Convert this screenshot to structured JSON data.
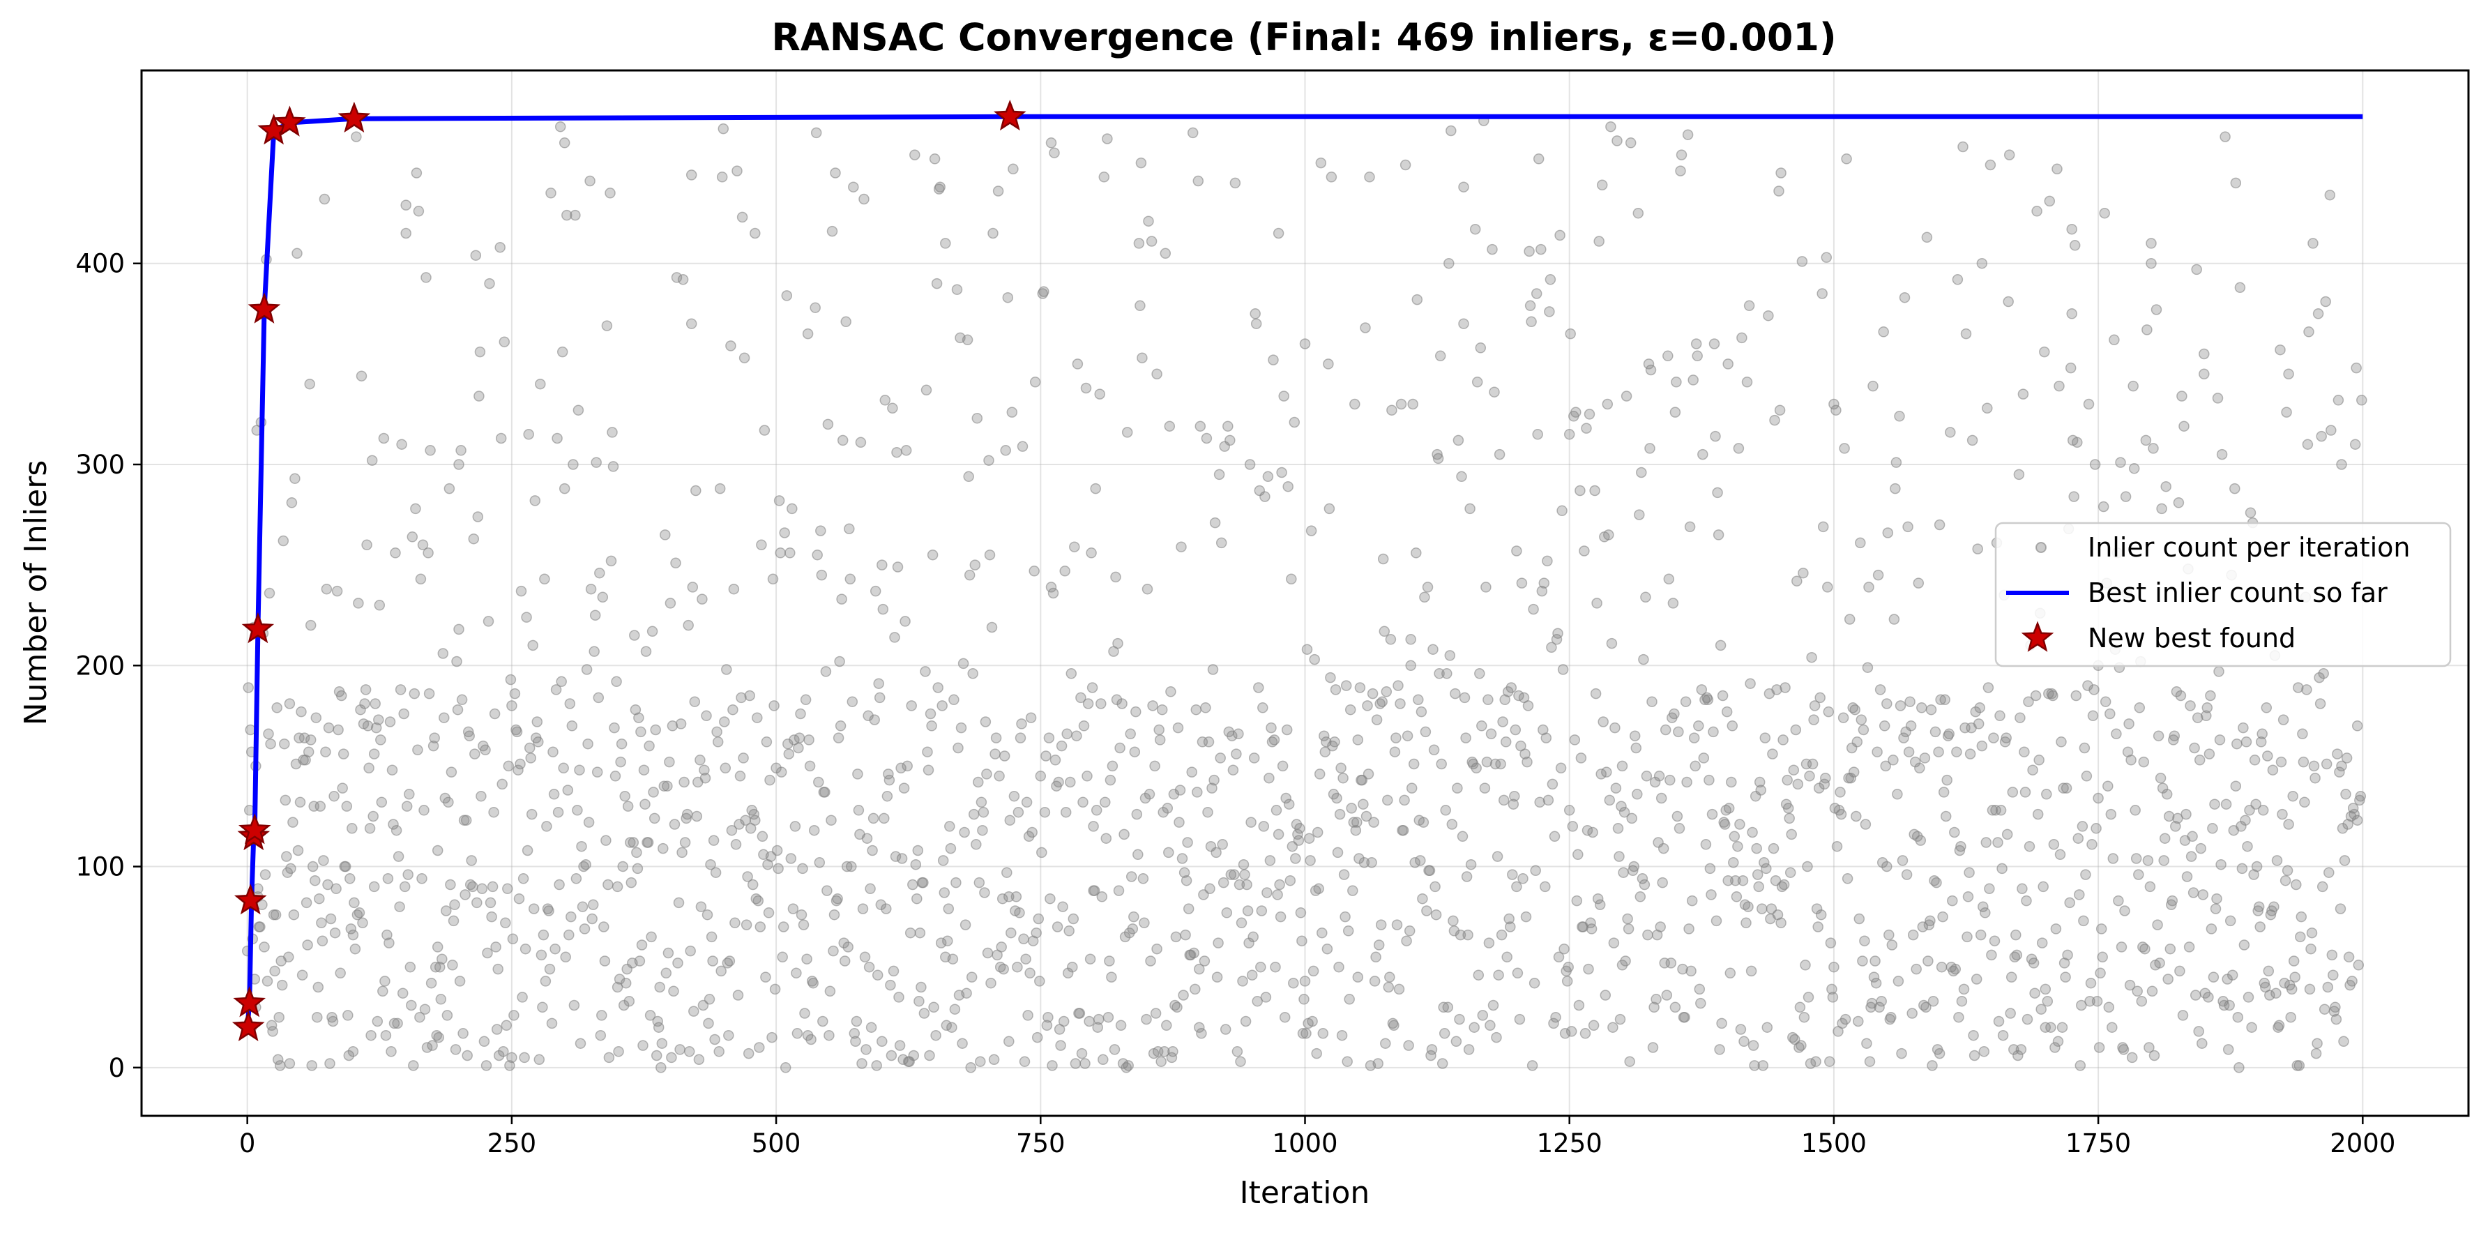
{
  "chart_data": {
    "type": "scatter",
    "title": "RANSAC Convergence (Final: 469 inliers, ε=0.001)",
    "xlabel": "Iteration",
    "ylabel": "Number of Inliers",
    "xlim": [
      -100,
      2100
    ],
    "ylim": [
      -24,
      496
    ],
    "xticks": [
      0,
      250,
      500,
      750,
      1000,
      1250,
      1500,
      1750,
      2000
    ],
    "yticks": [
      0,
      100,
      200,
      300,
      400
    ],
    "grid": true,
    "legend_position": "center-right",
    "series": [
      {
        "name": "Inlier count per iteration",
        "kind": "scatter",
        "color": "#808080",
        "x_range": [
          0,
          2000
        ],
        "y_range": [
          0,
          472
        ],
        "sample_points": [
          [
            4,
            20
          ],
          [
            8,
            30
          ],
          [
            10,
            85
          ],
          [
            40,
            2
          ],
          [
            60,
            220
          ],
          [
            100,
            8
          ],
          [
            120,
            90
          ],
          [
            150,
            415
          ],
          [
            180,
            60
          ],
          [
            200,
            300
          ],
          [
            250,
            180
          ],
          [
            300,
            460
          ],
          [
            350,
            40
          ],
          [
            420,
            370
          ],
          [
            480,
            415
          ],
          [
            530,
            365
          ],
          [
            600,
            250
          ],
          [
            660,
            410
          ],
          [
            720,
            85
          ],
          [
            760,
            460
          ],
          [
            800,
            120
          ],
          [
            860,
            345
          ],
          [
            900,
            20
          ],
          [
            975,
            415
          ],
          [
            1000,
            360
          ],
          [
            1050,
            45
          ],
          [
            1100,
            200
          ],
          [
            1150,
            370
          ],
          [
            1200,
            90
          ],
          [
            1250,
            315
          ],
          [
            1300,
            150
          ],
          [
            1350,
            30
          ],
          [
            1400,
            350
          ],
          [
            1450,
            445
          ],
          [
            1500,
            330
          ],
          [
            1550,
            100
          ],
          [
            1600,
            270
          ],
          [
            1640,
            400
          ],
          [
            1700,
            20
          ],
          [
            1725,
            375
          ],
          [
            1750,
            200
          ],
          [
            1800,
            400
          ],
          [
            1850,
            355
          ],
          [
            1880,
            440
          ],
          [
            1930,
            345
          ],
          [
            1980,
            300
          ],
          [
            1995,
            170
          ]
        ]
      },
      {
        "name": "Best inlier count so far",
        "kind": "step",
        "color": "#0000ff",
        "points": [
          [
            0,
            20
          ],
          [
            2,
            32
          ],
          [
            4,
            83
          ],
          [
            6,
            115
          ],
          [
            7,
            118
          ],
          [
            10,
            218
          ],
          [
            16,
            377
          ],
          [
            25,
            466
          ],
          [
            40,
            470
          ],
          [
            100,
            472
          ],
          [
            721,
            473
          ],
          [
            2000,
            473
          ]
        ]
      },
      {
        "name": "New best found",
        "kind": "marker",
        "color": "#cc0000",
        "edge_color": "#800000",
        "points": [
          [
            1,
            20
          ],
          [
            2,
            32
          ],
          [
            3,
            83
          ],
          [
            6,
            115
          ],
          [
            7,
            118
          ],
          [
            10,
            218
          ],
          [
            16,
            377
          ],
          [
            25,
            466
          ],
          [
            40,
            470
          ],
          [
            101,
            472
          ],
          [
            721,
            473
          ]
        ]
      }
    ]
  }
}
